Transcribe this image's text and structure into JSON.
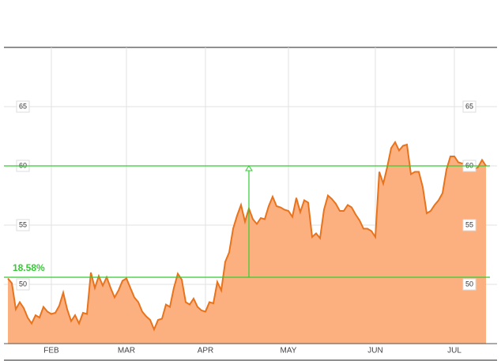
{
  "chart_data": {
    "type": "area",
    "values": [
      50.5,
      50.1,
      47.9,
      48.5,
      48,
      47.2,
      46.7,
      47.4,
      47.2,
      48.1,
      47.7,
      47.5,
      47.6,
      48.2,
      49.3,
      47.9,
      46.9,
      47.4,
      46.7,
      47.6,
      47.5,
      51,
      49.7,
      50.7,
      49.9,
      50.6,
      49.7,
      48.9,
      49.5,
      50.3,
      50.5,
      49.7,
      48.9,
      48.5,
      47.7,
      47.3,
      47,
      46.2,
      47,
      47.1,
      48.3,
      48.1,
      49.7,
      50.9,
      50.4,
      48.5,
      48.3,
      48.8,
      48.1,
      47.8,
      47.7,
      48.5,
      48.4,
      50.2,
      49.5,
      51.9,
      52.7,
      54.7,
      55.8,
      56.7,
      55.3,
      56.4,
      55.5,
      55.1,
      55.6,
      55.5,
      56.6,
      57.4,
      56.6,
      56.5,
      56.3,
      56.2,
      55.7,
      57.3,
      56.1,
      57.1,
      56.9,
      54,
      54.3,
      53.9,
      56.3,
      57.5,
      57.2,
      56.8,
      56.2,
      56.2,
      56.7,
      56.5,
      55.9,
      55.4,
      54.7,
      54.7,
      54.5,
      54,
      59.5,
      58.5,
      59.9,
      61.5,
      62,
      61.3,
      61.7,
      61.8,
      59.3,
      59.5,
      59.5,
      58.2,
      56,
      56.2,
      56.7,
      57.1,
      57.7,
      59.7,
      60.8,
      60.8,
      60.3,
      60.2,
      60.3,
      60.3,
      59.7,
      59.9,
      60.5,
      60
    ],
    "color": "#e8731d",
    "fill": "#fdb07f",
    "xlim": [
      0,
      121
    ],
    "xticks": [
      {
        "value": 11,
        "label": "FEB"
      },
      {
        "value": 30,
        "label": "MAR"
      },
      {
        "value": 50,
        "label": "APR"
      },
      {
        "value": 71,
        "label": "MAY"
      },
      {
        "value": 93,
        "label": "JUN"
      },
      {
        "value": 113,
        "label": "JUL"
      }
    ],
    "ylim": [
      45,
      70
    ],
    "yticks": [
      50,
      55,
      60,
      65
    ],
    "grid": true,
    "measure": {
      "x": 61,
      "from": 50.6,
      "to": 60,
      "label": "18.58%",
      "color": "#33cc33"
    }
  }
}
